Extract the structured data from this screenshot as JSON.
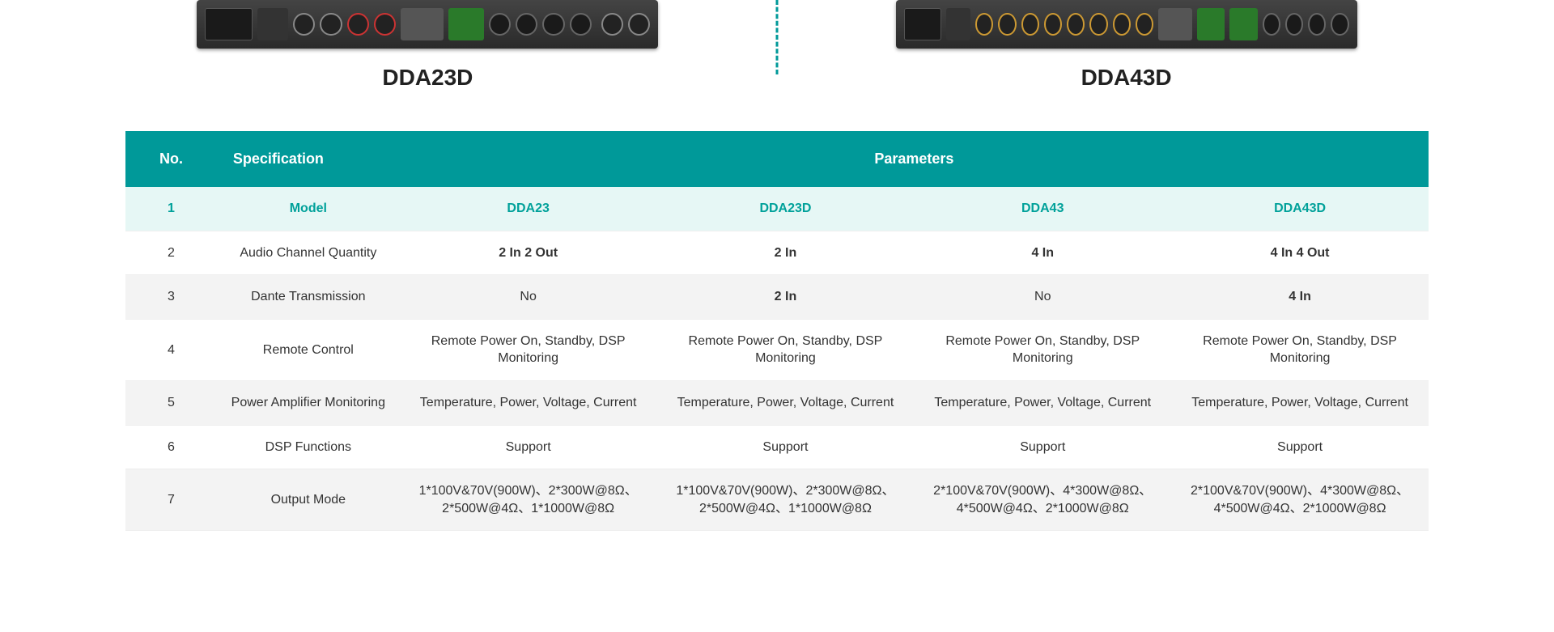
{
  "products": {
    "left_label": "DDA23D",
    "right_label": "DDA43D"
  },
  "table": {
    "header": {
      "no": "No.",
      "spec": "Specification",
      "params": "Parameters"
    },
    "rows": [
      {
        "no": "1",
        "spec": "Model",
        "vals": [
          "DDA23",
          "DDA23D",
          "DDA43",
          "DDA43D"
        ],
        "style": "model",
        "bold": [
          false,
          false,
          false,
          false
        ]
      },
      {
        "no": "2",
        "spec": "Audio Channel Quantity",
        "vals": [
          "2 In 2 Out",
          "2 In",
          "4 In",
          "4 In 4 Out"
        ],
        "style": "",
        "bold": [
          true,
          true,
          true,
          true
        ]
      },
      {
        "no": "3",
        "spec": "Dante Transmission",
        "vals": [
          "No",
          "2 In",
          "No",
          "4 In"
        ],
        "style": "alt",
        "bold": [
          false,
          true,
          false,
          true
        ]
      },
      {
        "no": "4",
        "spec": "Remote Control",
        "vals": [
          "Remote Power On, Standby, DSP Monitoring",
          "Remote Power On, Standby, DSP Monitoring",
          "Remote Power On, Standby, DSP Monitoring",
          "Remote Power On, Standby, DSP Monitoring"
        ],
        "style": "",
        "bold": [
          false,
          false,
          false,
          false
        ]
      },
      {
        "no": "5",
        "spec": "Power Amplifier Monitoring",
        "vals": [
          "Temperature, Power, Voltage, Current",
          "Temperature, Power, Voltage, Current",
          "Temperature, Power, Voltage, Current",
          "Temperature, Power, Voltage, Current"
        ],
        "style": "alt",
        "bold": [
          false,
          false,
          false,
          false
        ]
      },
      {
        "no": "6",
        "spec": "DSP Functions",
        "vals": [
          "Support",
          "Support",
          "Support",
          "Support"
        ],
        "style": "",
        "bold": [
          false,
          false,
          false,
          false
        ]
      },
      {
        "no": "7",
        "spec": "Output Mode",
        "vals": [
          "1*100V&70V(900W)、2*300W@8Ω、2*500W@4Ω、1*1000W@8Ω",
          "1*100V&70V(900W)、2*300W@8Ω、2*500W@4Ω、1*1000W@8Ω",
          "2*100V&70V(900W)、4*300W@8Ω、4*500W@4Ω、2*1000W@8Ω",
          "2*100V&70V(900W)、4*300W@8Ω、4*500W@4Ω、2*1000W@8Ω"
        ],
        "style": "alt",
        "bold": [
          false,
          false,
          false,
          false
        ]
      }
    ]
  },
  "colors": {
    "header_bg": "#009999",
    "model_row_bg": "#e6f7f5",
    "model_text": "#00a19a",
    "alt_row_bg": "#f3f3f3",
    "text": "#333333",
    "divider": "#009999"
  }
}
